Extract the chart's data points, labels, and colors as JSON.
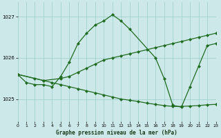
{
  "title": "Graphe pression niveau de la mer (hPa)",
  "bg_color": "#cce8e8",
  "grid_color": "#99cccc",
  "line_color": "#1f6b1f",
  "x_min": 0,
  "x_max": 23,
  "y_min": 1024.45,
  "y_max": 1027.35,
  "yticks": [
    1025,
    1026,
    1027
  ],
  "xticks": [
    0,
    1,
    2,
    3,
    4,
    5,
    6,
    7,
    8,
    9,
    10,
    11,
    12,
    13,
    14,
    15,
    16,
    17,
    18,
    19,
    20,
    21,
    22,
    23
  ],
  "line_peak_x": [
    0,
    1,
    2,
    3,
    4,
    5,
    6,
    7,
    8,
    9,
    10,
    11,
    12,
    13,
    16,
    17,
    18,
    19,
    20,
    21,
    22,
    23
  ],
  "line_peak_y": [
    1025.6,
    1025.4,
    1025.35,
    1025.35,
    1025.3,
    1025.55,
    1025.9,
    1026.35,
    1026.6,
    1026.8,
    1026.9,
    1027.05,
    1026.9,
    1026.7,
    1026.0,
    1025.5,
    1024.85,
    1024.8,
    1025.3,
    1025.8,
    1026.3,
    1026.35
  ],
  "line_up_x": [
    0,
    3,
    5,
    6,
    7,
    8,
    9,
    10,
    11,
    12,
    13,
    14,
    15,
    16,
    17,
    18,
    19,
    20,
    21,
    22,
    23
  ],
  "line_up_y": [
    1025.6,
    1025.45,
    1025.5,
    1025.55,
    1025.65,
    1025.75,
    1025.85,
    1025.95,
    1026.0,
    1026.05,
    1026.1,
    1026.15,
    1026.2,
    1026.25,
    1026.3,
    1026.35,
    1026.4,
    1026.45,
    1026.5,
    1026.55,
    1026.6
  ],
  "line_down_x": [
    0,
    2,
    3,
    4,
    5,
    6,
    7,
    8,
    9,
    10,
    11,
    12,
    13,
    14,
    15,
    16,
    17,
    18,
    19,
    20,
    21,
    22,
    23
  ],
  "line_down_y": [
    1025.6,
    1025.5,
    1025.45,
    1025.4,
    1025.35,
    1025.3,
    1025.25,
    1025.2,
    1025.15,
    1025.1,
    1025.05,
    1025.0,
    1024.97,
    1024.94,
    1024.9,
    1024.87,
    1024.84,
    1024.82,
    1024.82,
    1024.83,
    1024.84,
    1024.86,
    1024.87
  ]
}
